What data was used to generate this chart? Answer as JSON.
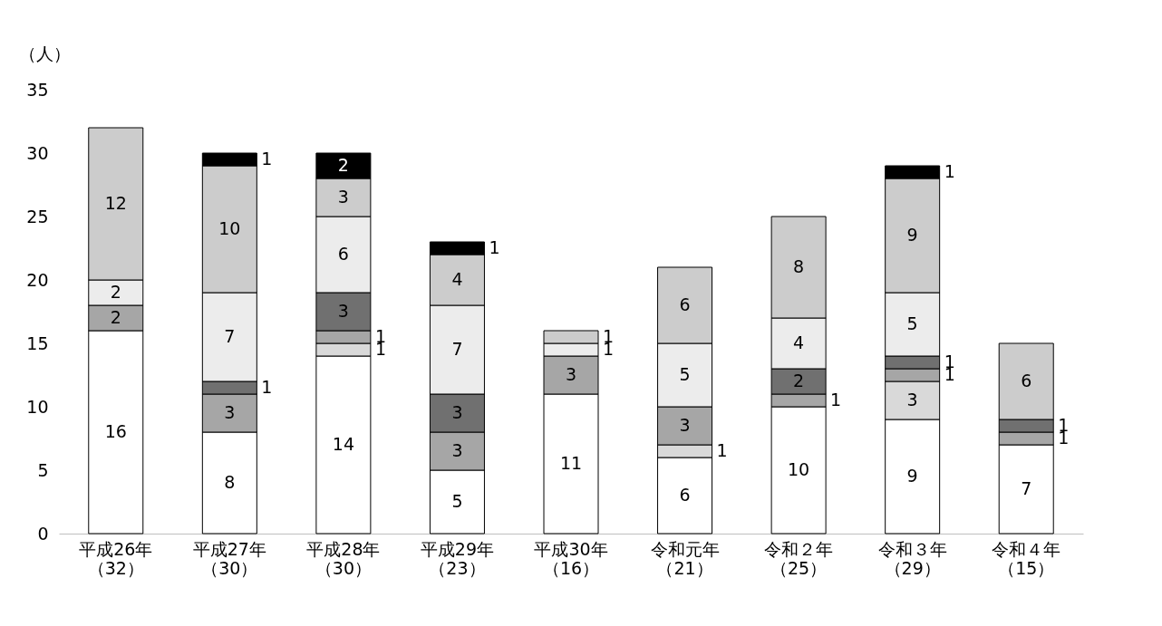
{
  "chart_data": {
    "type": "bar",
    "stacked": true,
    "ylabel": "（人）",
    "categories": [
      "平成26年（32）",
      "平成27年（30）",
      "平成28年（30）",
      "平成29年（23）",
      "平成30年（16）",
      "令和元年（21）",
      "令和２年（25）",
      "令和３年（29）",
      "令和４年（15）"
    ],
    "series": [
      {
        "color": "#ffffff",
        "values": [
          16,
          8,
          14,
          5,
          11,
          6,
          10,
          9,
          7
        ]
      },
      {
        "color": "#d9d9d9",
        "values": [
          null,
          null,
          1,
          null,
          null,
          1,
          null,
          3,
          null
        ]
      },
      {
        "color": "#a6a6a6",
        "values": [
          2,
          3,
          1,
          3,
          3,
          3,
          1,
          1,
          1
        ]
      },
      {
        "color": "#707070",
        "values": [
          null,
          1,
          3,
          3,
          null,
          null,
          2,
          1,
          1
        ]
      },
      {
        "color": "#ececec",
        "values": [
          2,
          7,
          6,
          7,
          1,
          5,
          4,
          5,
          null
        ]
      },
      {
        "color": "#cccccc",
        "values": [
          12,
          10,
          3,
          4,
          1,
          6,
          8,
          9,
          6
        ]
      },
      {
        "color": "#000000",
        "values": [
          null,
          1,
          2,
          1,
          null,
          null,
          null,
          1,
          null
        ]
      }
    ],
    "ylim": [
      0,
      35
    ],
    "yticks": [
      0,
      5,
      10,
      15,
      20,
      25,
      30,
      35
    ],
    "grid": false,
    "legend": false,
    "data_labels": true
  }
}
